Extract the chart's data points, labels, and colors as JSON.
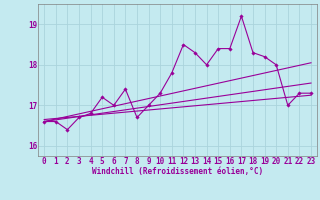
{
  "title": "",
  "xlabel": "Windchill (Refroidissement éolien,°C)",
  "ylabel": "",
  "bg_color": "#c4eaf0",
  "grid_color": "#aad4dc",
  "line_color": "#990099",
  "xlim": [
    -0.5,
    23.5
  ],
  "ylim": [
    15.75,
    19.5
  ],
  "yticks": [
    16,
    17,
    18,
    19
  ],
  "xticks": [
    0,
    1,
    2,
    3,
    4,
    5,
    6,
    7,
    8,
    9,
    10,
    11,
    12,
    13,
    14,
    15,
    16,
    17,
    18,
    19,
    20,
    21,
    22,
    23
  ],
  "series": [
    16.6,
    16.6,
    16.4,
    16.7,
    16.8,
    17.2,
    17.0,
    17.4,
    16.7,
    17.0,
    17.3,
    17.8,
    18.5,
    18.3,
    18.0,
    18.4,
    18.4,
    19.2,
    18.3,
    18.2,
    18.0,
    17.0,
    17.3,
    17.3
  ],
  "regression_lines": [
    {
      "x0": 0,
      "y0": 16.6,
      "x1": 23,
      "y1": 18.05
    },
    {
      "x0": 0,
      "y0": 16.6,
      "x1": 23,
      "y1": 17.55
    },
    {
      "x0": 0,
      "y0": 16.65,
      "x1": 23,
      "y1": 17.25
    }
  ],
  "xlabel_fontsize": 5.5,
  "tick_fontsize": 5.5,
  "line_width": 0.8,
  "marker": "D",
  "marker_size": 1.8
}
